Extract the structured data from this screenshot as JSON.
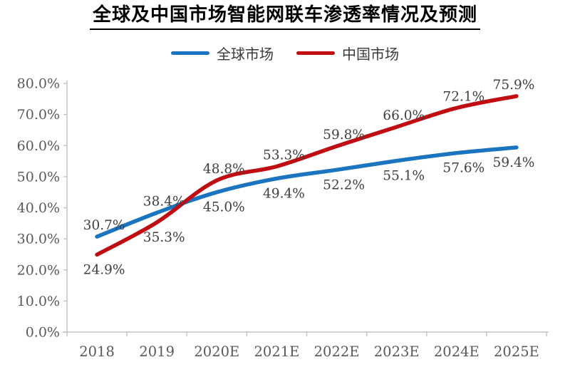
{
  "title": "全球及中国市场智能网联车渗透率情况及预测",
  "chart_data": {
    "type": "line",
    "title": "全球及中国市场智能网联车渗透率情况及预测",
    "categories": [
      "2018",
      "2019",
      "2020E",
      "2021E",
      "2022E",
      "2023E",
      "2024E",
      "2025E"
    ],
    "series": [
      {
        "name": "全球市场",
        "slug": "global-market",
        "color": "#1b74c0",
        "values": [
          30.7,
          38.4,
          45.0,
          49.4,
          52.2,
          55.1,
          57.6,
          59.4
        ],
        "labels": [
          "30.7%",
          "38.4%",
          "45.0%",
          "49.4%",
          "52.2%",
          "55.1%",
          "57.6%",
          "59.4%"
        ]
      },
      {
        "name": "中国市场",
        "slug": "china-market",
        "color": "#c00d12",
        "values": [
          24.9,
          35.3,
          48.8,
          53.3,
          59.8,
          66.0,
          72.1,
          75.9
        ],
        "labels": [
          "24.9%",
          "35.3%",
          "48.8%",
          "53.3%",
          "59.8%",
          "66.0%",
          "72.1%",
          "75.9%"
        ]
      }
    ],
    "ylim": [
      0,
      80
    ],
    "ytick_labels": [
      "0.0%",
      "10.0%",
      "20.0%",
      "30.0%",
      "40.0%",
      "50.0%",
      "60.0%",
      "70.0%",
      "80.0%"
    ],
    "grid": false,
    "legend_position": "top",
    "line_smooth": true,
    "axis_color": "#c3c3c3",
    "tick_label_color": "#595959",
    "data_label_color": "#3f3f3f",
    "xlabel": "",
    "ylabel": ""
  }
}
